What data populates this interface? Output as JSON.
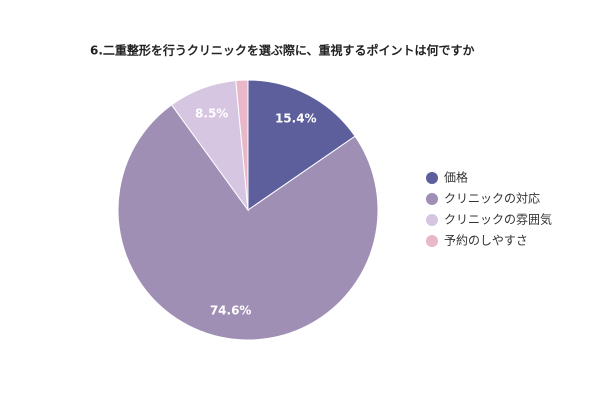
{
  "chart_data": {
    "type": "pie",
    "title": "6.二重整形を行うクリニックを選ぶ際に、重視するポイントは何ですか",
    "categories": [
      "価格",
      "クリニックの対応",
      "クリニックの雰囲気",
      "予約のしやすさ"
    ],
    "values": [
      15.4,
      74.6,
      8.5,
      1.5
    ],
    "value_labels": [
      "15.4%",
      "74.6%",
      "8.5%",
      null
    ],
    "colors": [
      "#5c5f9c",
      "#a08fb5",
      "#d6c6e1",
      "#e8b8c8"
    ],
    "legend": "right"
  }
}
